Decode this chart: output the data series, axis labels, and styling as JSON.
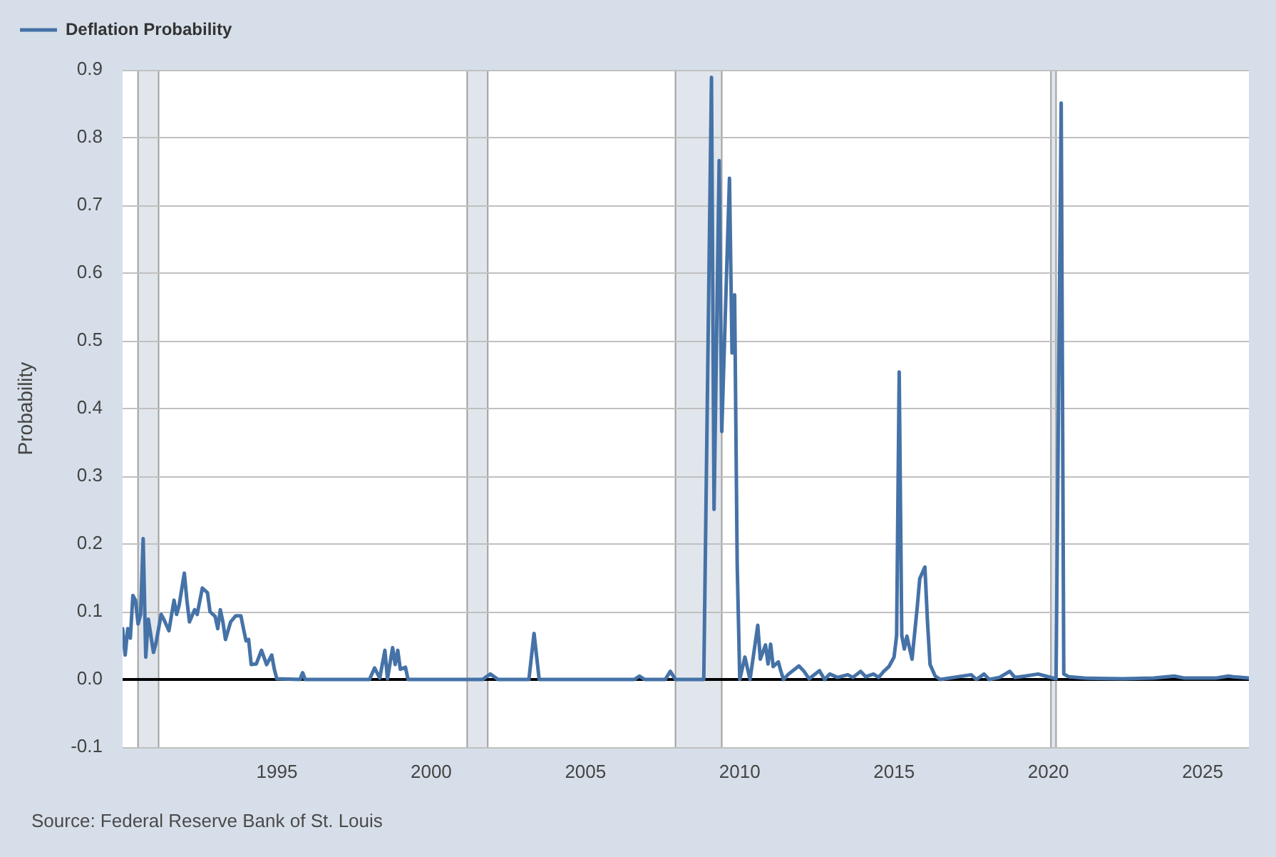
{
  "chart_data": {
    "type": "line",
    "ylabel": "Probability",
    "annotations": [
      "Source: Federal Reserve Bank of St. Louis"
    ],
    "x": [
      "1990-01",
      "1990-02",
      "1990-03",
      "1990-04",
      "1990-05",
      "1990-06",
      "1990-07",
      "1990-08",
      "1990-09",
      "1990-10",
      "1990-11",
      "1991-01",
      "1991-02",
      "1991-04",
      "1991-05",
      "1991-07",
      "1991-09",
      "1991-10",
      "1991-11",
      "1992-01",
      "1992-02",
      "1992-03",
      "1992-05",
      "1992-06",
      "1992-08",
      "1992-10",
      "1992-11",
      "1993-01",
      "1993-02",
      "1993-03",
      "1993-04",
      "1993-05",
      "1993-07",
      "1993-09",
      "1993-11",
      "1993-12",
      "1994-01",
      "1994-02",
      "1994-03",
      "1994-05",
      "1994-07",
      "1994-09",
      "1994-11",
      "1994-12",
      "1995-01",
      "1995-10",
      "1995-11",
      "1995-12",
      "1998-01",
      "1998-03",
      "1998-05",
      "1998-07",
      "1998-08",
      "1998-10",
      "1998-11",
      "1998-12",
      "1999-01",
      "1999-03",
      "1999-04",
      "2001-09",
      "2001-12",
      "2002-03",
      "2003-03",
      "2003-05",
      "2003-07",
      "2006-08",
      "2006-10",
      "2006-12",
      "2007-08",
      "2007-10",
      "2007-12",
      "2008-11",
      "2009-02",
      "2009-03",
      "2009-05",
      "2009-06",
      "2009-09",
      "2009-10",
      "2009-11",
      "2009-12",
      "2010-01",
      "2010-03",
      "2010-05",
      "2010-08",
      "2010-09",
      "2010-11",
      "2010-12",
      "2011-01",
      "2011-02",
      "2011-04",
      "2011-05",
      "2011-06",
      "2011-08",
      "2011-12",
      "2012-02",
      "2012-04",
      "2012-08",
      "2012-10",
      "2012-12",
      "2013-03",
      "2013-07",
      "2013-09",
      "2013-12",
      "2014-02",
      "2014-05",
      "2014-07",
      "2014-09",
      "2014-11",
      "2015-01",
      "2015-02",
      "2015-03",
      "2015-04",
      "2015-05",
      "2015-06",
      "2015-08",
      "2015-10",
      "2015-11",
      "2016-01",
      "2016-02",
      "2016-03",
      "2016-05",
      "2016-07",
      "2017-07",
      "2017-09",
      "2017-12",
      "2018-02",
      "2018-06",
      "2018-10",
      "2018-12",
      "2019-04",
      "2019-09",
      "2019-12",
      "2020-04",
      "2020-06",
      "2020-07",
      "2020-09",
      "2021-03",
      "2022-06",
      "2023-06",
      "2024-02",
      "2024-06",
      "2025-06",
      "2025-11",
      "2026-01",
      "2026-07"
    ],
    "series": [
      {
        "name": "Deflation Probability",
        "color": "#4572a7",
        "values": [
          0.075,
          0.036,
          0.075,
          0.061,
          0.124,
          0.117,
          0.082,
          0.096,
          0.208,
          0.033,
          0.089,
          0.04,
          0.054,
          0.096,
          0.089,
          0.072,
          0.117,
          0.096,
          0.11,
          0.157,
          0.117,
          0.085,
          0.103,
          0.096,
          0.135,
          0.128,
          0.1,
          0.093,
          0.075,
          0.103,
          0.085,
          0.059,
          0.085,
          0.094,
          0.094,
          0.075,
          0.057,
          0.059,
          0.022,
          0.023,
          0.043,
          0.022,
          0.036,
          0.015,
          0.001,
          0.0,
          0.01,
          0.0,
          0.0,
          0.017,
          0.002,
          0.043,
          0.001,
          0.047,
          0.022,
          0.043,
          0.015,
          0.018,
          0.0,
          0.0,
          0.008,
          0.0,
          0.0,
          0.068,
          0.0,
          0.0,
          0.005,
          0.0,
          0.0,
          0.012,
          0.0,
          0.0,
          0.889,
          0.251,
          0.766,
          0.366,
          0.74,
          0.482,
          0.568,
          0.17,
          0.0,
          0.033,
          0.0,
          0.08,
          0.03,
          0.051,
          0.023,
          0.052,
          0.019,
          0.026,
          0.012,
          0.0,
          0.008,
          0.02,
          0.012,
          0.001,
          0.013,
          0.0,
          0.008,
          0.003,
          0.007,
          0.003,
          0.012,
          0.004,
          0.008,
          0.003,
          0.012,
          0.019,
          0.033,
          0.065,
          0.454,
          0.065,
          0.045,
          0.064,
          0.03,
          0.106,
          0.149,
          0.166,
          0.086,
          0.022,
          0.005,
          0.0,
          0.007,
          0.0,
          0.008,
          0.0,
          0.003,
          0.012,
          0.003,
          0.005,
          0.008,
          0.005,
          0.001,
          0.851,
          0.008,
          0.004,
          0.002,
          0.001,
          0.002,
          0.005,
          0.002,
          0.002,
          0.005,
          0.004,
          0.002
        ]
      }
    ],
    "xlim": [
      "1990-01",
      "2026-07"
    ],
    "xticks": [
      "1995",
      "2000",
      "2005",
      "2010",
      "2015",
      "2020",
      "2025"
    ],
    "ylim": [
      -0.1,
      0.9
    ],
    "yticks": [
      -0.1,
      {
        "value": 0,
        "label": "0.0"
      },
      0.1,
      0.2,
      0.3,
      0.4,
      0.5,
      0.6,
      0.7,
      0.8,
      0.9
    ],
    "grid": "y",
    "legend": "top left",
    "bands": [
      {
        "axis": "x",
        "from": "1990-07",
        "to": "1991-03",
        "color": "#e1e6ec"
      },
      {
        "axis": "x",
        "from": "2001-03",
        "to": "2001-11",
        "color": "#e1e6ec"
      },
      {
        "axis": "x",
        "from": "2007-12",
        "to": "2009-06",
        "color": "#e1e6ec"
      },
      {
        "axis": "x",
        "from": "2020-02",
        "to": "2020-04",
        "color": "#e1e6ec"
      }
    ],
    "ref_lines": [
      {
        "axis": "y",
        "value": 0,
        "color": "#000000"
      }
    ]
  }
}
